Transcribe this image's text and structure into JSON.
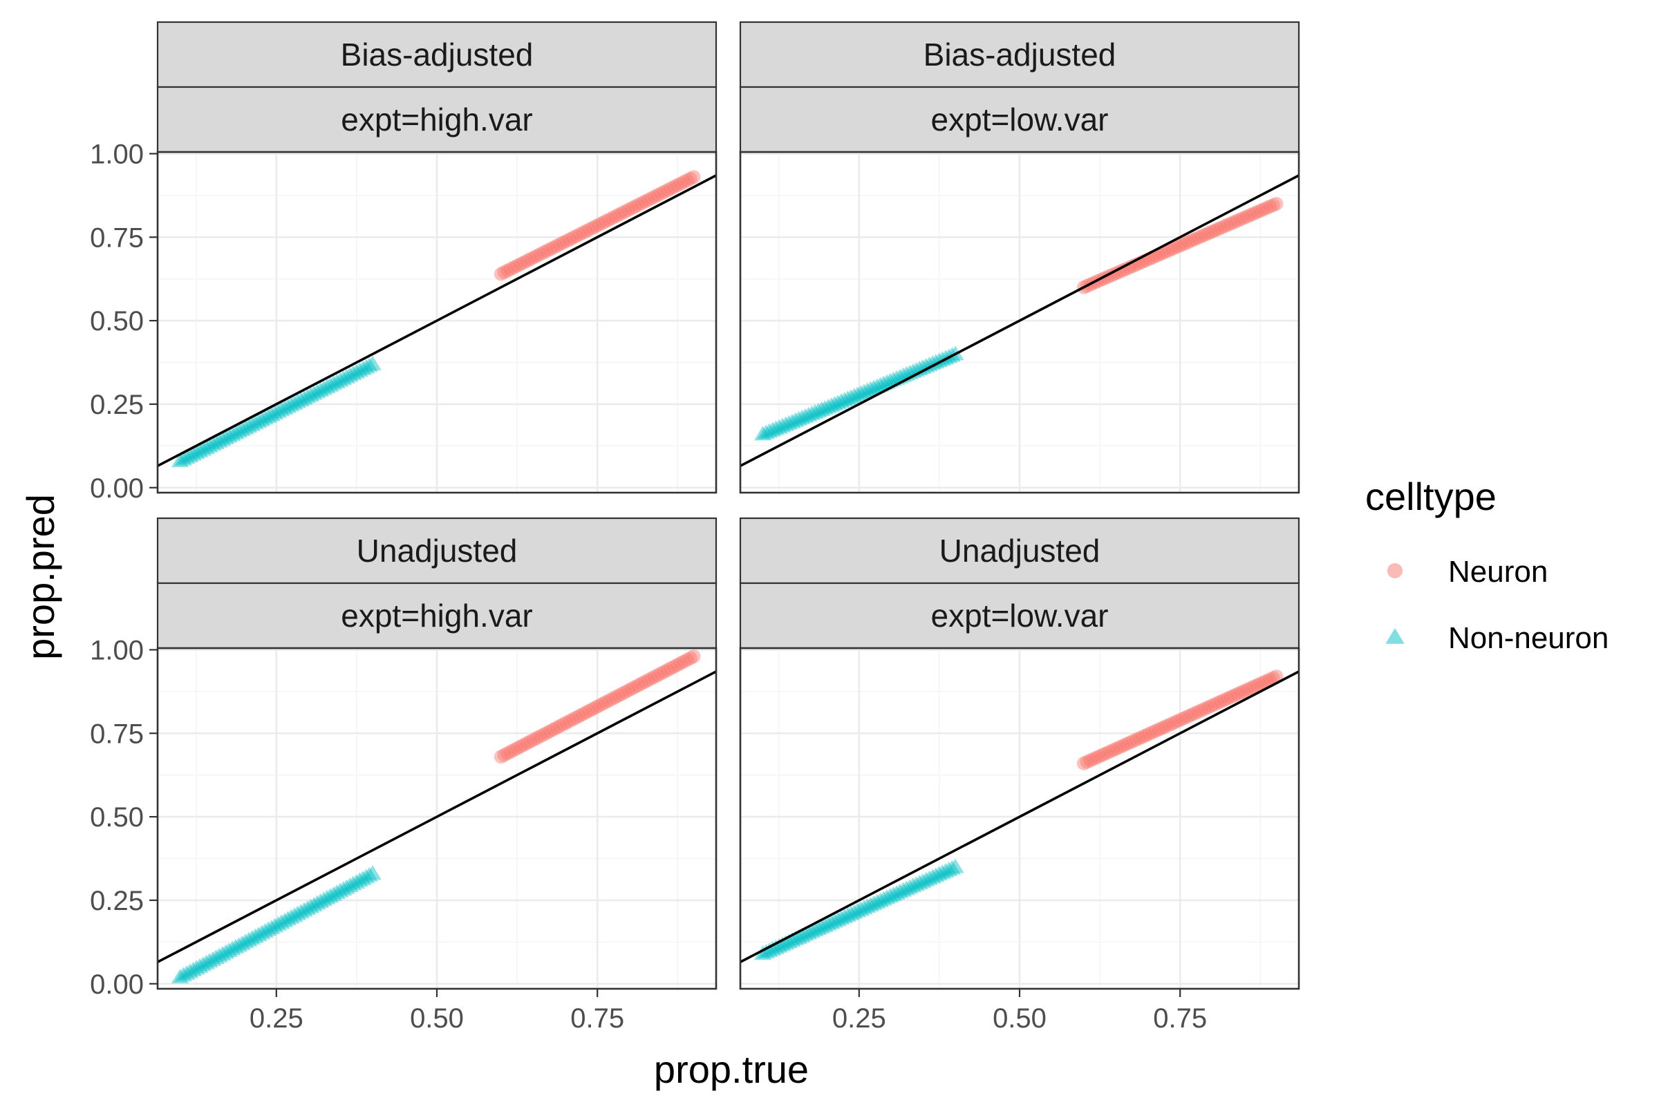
{
  "chart_data": {
    "type": "scatter",
    "xlabel": "prop.true",
    "ylabel": "prop.pred",
    "xlim": [
      0.065,
      0.935
    ],
    "ylim": [
      -0.015,
      1.005
    ],
    "x_ticks": [
      0.25,
      0.5,
      0.75
    ],
    "x_tick_labels": [
      "0.25",
      "0.50",
      "0.75"
    ],
    "y_ticks": [
      0.0,
      0.25,
      0.5,
      0.75,
      1.0
    ],
    "y_tick_labels": [
      "0.00",
      "0.25",
      "0.50",
      "0.75",
      "1.00"
    ],
    "grid": true,
    "reference_line": {
      "slope": 1,
      "intercept": 0
    },
    "legend": {
      "title": "celltype",
      "position": "right",
      "entries": [
        {
          "label": "Neuron",
          "color": "#F8766D",
          "shape": "circle"
        },
        {
          "label": "Non-neuron",
          "color": "#00BFC4",
          "shape": "triangle"
        }
      ]
    },
    "panels": [
      {
        "strip_top": "Bias-adjusted",
        "strip_bottom": "expt=high.var",
        "series": [
          {
            "name": "Neuron",
            "x_range": [
              0.6,
              0.9
            ],
            "y_range": [
              0.64,
              0.93
            ]
          },
          {
            "name": "Non-neuron",
            "x_range": [
              0.1,
              0.4
            ],
            "y_range": [
              0.08,
              0.37
            ]
          }
        ]
      },
      {
        "strip_top": "Bias-adjusted",
        "strip_bottom": "expt=low.var",
        "series": [
          {
            "name": "Neuron",
            "x_range": [
              0.6,
              0.9
            ],
            "y_range": [
              0.6,
              0.85
            ]
          },
          {
            "name": "Non-neuron",
            "x_range": [
              0.1,
              0.4
            ],
            "y_range": [
              0.16,
              0.4
            ]
          }
        ]
      },
      {
        "strip_top": "Unadjusted",
        "strip_bottom": "expt=high.var",
        "series": [
          {
            "name": "Neuron",
            "x_range": [
              0.6,
              0.9
            ],
            "y_range": [
              0.68,
              0.98
            ]
          },
          {
            "name": "Non-neuron",
            "x_range": [
              0.1,
              0.4
            ],
            "y_range": [
              0.02,
              0.33
            ]
          }
        ]
      },
      {
        "strip_top": "Unadjusted",
        "strip_bottom": "expt=low.var",
        "series": [
          {
            "name": "Neuron",
            "x_range": [
              0.6,
              0.9
            ],
            "y_range": [
              0.66,
              0.92
            ]
          },
          {
            "name": "Non-neuron",
            "x_range": [
              0.1,
              0.4
            ],
            "y_range": [
              0.09,
              0.35
            ]
          }
        ]
      }
    ]
  }
}
